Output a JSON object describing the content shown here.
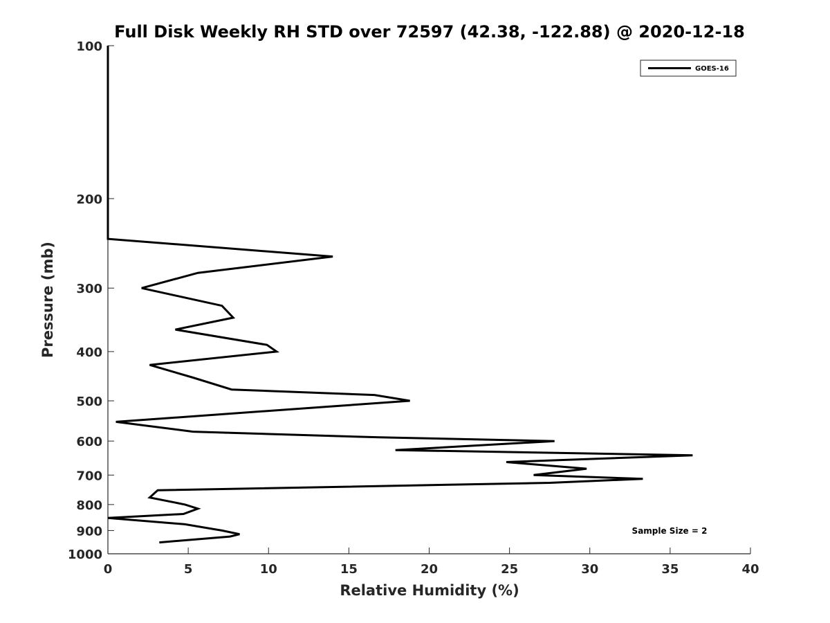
{
  "chart_data": {
    "type": "line",
    "title": "Full Disk Weekly RH STD over 72597 (42.38, -122.88) @ 2020-12-18",
    "xlabel": "Relative Humidity (%)",
    "ylabel": "Pressure (mb)",
    "xlim": [
      0,
      40
    ],
    "ylim": [
      100,
      1000
    ],
    "y_scale": "log",
    "y_reversed": true,
    "grid": false,
    "legend_position": "top-right",
    "x_ticks": [
      "0",
      "5",
      "10",
      "15",
      "20",
      "25",
      "30",
      "35",
      "40"
    ],
    "y_ticks": [
      "100",
      "200",
      "300",
      "400",
      "500",
      "600",
      "700",
      "800",
      "900",
      "1000"
    ],
    "annotation": "Sample Size = 2",
    "series": [
      {
        "name": "GOES-16",
        "color": "#000000",
        "points": [
          {
            "x": 0.0,
            "y": 100
          },
          {
            "x": 0.0,
            "y": 150
          },
          {
            "x": 0.0,
            "y": 200
          },
          {
            "x": 0.0,
            "y": 240
          },
          {
            "x": 14.0,
            "y": 260
          },
          {
            "x": 5.6,
            "y": 280
          },
          {
            "x": 2.1,
            "y": 300
          },
          {
            "x": 7.1,
            "y": 325
          },
          {
            "x": 7.8,
            "y": 343
          },
          {
            "x": 4.2,
            "y": 362
          },
          {
            "x": 9.9,
            "y": 388
          },
          {
            "x": 10.5,
            "y": 400
          },
          {
            "x": 2.6,
            "y": 425
          },
          {
            "x": 5.3,
            "y": 450
          },
          {
            "x": 7.7,
            "y": 475
          },
          {
            "x": 16.6,
            "y": 487
          },
          {
            "x": 18.8,
            "y": 500
          },
          {
            "x": 14.2,
            "y": 512
          },
          {
            "x": 0.5,
            "y": 550
          },
          {
            "x": 5.3,
            "y": 575
          },
          {
            "x": 16.9,
            "y": 590
          },
          {
            "x": 27.8,
            "y": 600
          },
          {
            "x": 17.9,
            "y": 625
          },
          {
            "x": 36.4,
            "y": 640
          },
          {
            "x": 24.8,
            "y": 660
          },
          {
            "x": 29.8,
            "y": 680
          },
          {
            "x": 26.5,
            "y": 700
          },
          {
            "x": 33.3,
            "y": 712
          },
          {
            "x": 27.5,
            "y": 725
          },
          {
            "x": 3.1,
            "y": 750
          },
          {
            "x": 2.6,
            "y": 775
          },
          {
            "x": 4.8,
            "y": 800
          },
          {
            "x": 5.6,
            "y": 815
          },
          {
            "x": 4.7,
            "y": 835
          },
          {
            "x": 0.0,
            "y": 850
          },
          {
            "x": 4.8,
            "y": 875
          },
          {
            "x": 7.1,
            "y": 900
          },
          {
            "x": 8.2,
            "y": 915
          },
          {
            "x": 7.6,
            "y": 925
          },
          {
            "x": 3.2,
            "y": 950
          }
        ]
      }
    ]
  }
}
